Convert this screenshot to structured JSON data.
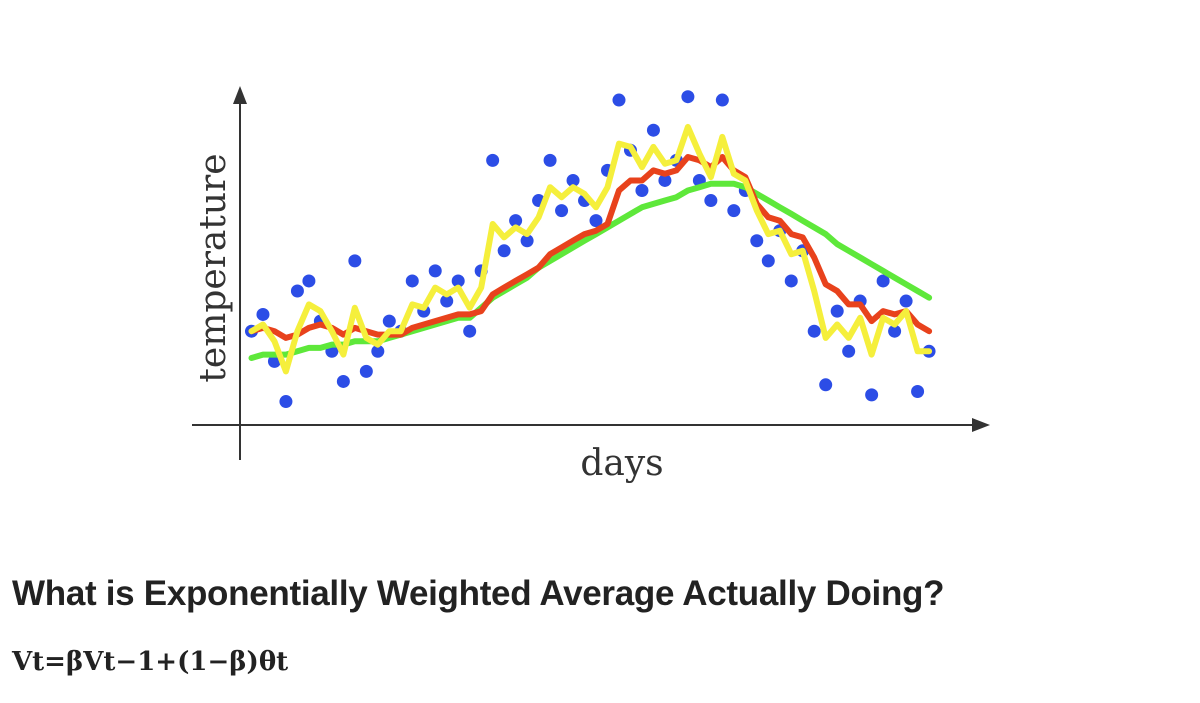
{
  "heading": "What is Exponentially Weighted Average Actually Doing?",
  "formula": "Vt=βVt−1+(1−β)θt",
  "chart_data": {
    "type": "scatter",
    "x_label": "days",
    "y_label": "temperature",
    "xlim": [
      0,
      64
    ],
    "ylim": [
      0,
      100
    ],
    "x": [
      1,
      2,
      3,
      4,
      5,
      6,
      7,
      8,
      9,
      10,
      11,
      12,
      13,
      14,
      15,
      16,
      17,
      18,
      19,
      20,
      21,
      22,
      23,
      24,
      25,
      26,
      27,
      28,
      29,
      30,
      31,
      32,
      33,
      34,
      35,
      36,
      37,
      38,
      39,
      40,
      41,
      42,
      43,
      44,
      45,
      46,
      47,
      48,
      49,
      50,
      51,
      52,
      53,
      54,
      55,
      56,
      57,
      58,
      59,
      60
    ],
    "series": [
      {
        "style": "points",
        "color": "#2c4de6",
        "values": [
          28,
          33,
          19,
          7,
          40,
          43,
          31,
          22,
          13,
          49,
          16,
          22,
          31,
          28,
          43,
          34,
          46,
          37,
          43,
          28,
          46,
          79,
          52,
          61,
          55,
          67,
          79,
          64,
          73,
          67,
          61,
          76,
          97,
          82,
          70,
          88,
          73,
          79,
          98,
          73,
          67,
          97,
          64,
          70,
          55,
          49,
          58,
          43,
          52,
          28,
          12,
          34,
          22,
          37,
          9,
          43,
          28,
          37,
          10,
          22
        ]
      },
      {
        "style": "line",
        "color": "#5ee83a",
        "values": [
          20,
          21,
          21,
          21,
          22,
          23,
          23,
          24,
          24,
          25,
          25,
          25,
          26,
          27,
          28,
          29,
          30,
          31,
          32,
          32,
          35,
          38,
          40,
          42,
          44,
          47,
          49,
          51,
          53,
          55,
          57,
          59,
          61,
          63,
          65,
          66,
          67,
          68,
          70,
          71,
          72,
          72,
          72,
          71,
          69,
          67,
          65,
          63,
          61,
          59,
          57,
          54,
          52,
          50,
          48,
          46,
          44,
          42,
          40,
          38
        ]
      },
      {
        "style": "line",
        "color": "#e8421c",
        "values": [
          28,
          29,
          28,
          26,
          27,
          29,
          30,
          29,
          27,
          29,
          28,
          27,
          27,
          27,
          29,
          30,
          31,
          32,
          33,
          33,
          34,
          39,
          41,
          43,
          45,
          47,
          51,
          53,
          55,
          57,
          58,
          60,
          70,
          73,
          73,
          76,
          75,
          76,
          80,
          79,
          77,
          80,
          76,
          74,
          66,
          62,
          61,
          57,
          56,
          50,
          42,
          40,
          36,
          36,
          31,
          34,
          33,
          34,
          30,
          28
        ]
      },
      {
        "style": "line",
        "color": "#f5ef3c",
        "values": [
          28,
          30,
          25,
          16,
          28,
          36,
          34,
          28,
          21,
          35,
          26,
          24,
          28,
          28,
          36,
          35,
          41,
          39,
          41,
          35,
          41,
          60,
          56,
          59,
          57,
          62,
          71,
          68,
          71,
          69,
          65,
          71,
          84,
          83,
          77,
          83,
          78,
          79,
          89,
          81,
          74,
          86,
          75,
          73,
          64,
          57,
          58,
          51,
          52,
          40,
          26,
          30,
          26,
          32,
          21,
          32,
          30,
          34,
          22,
          22
        ]
      }
    ]
  }
}
